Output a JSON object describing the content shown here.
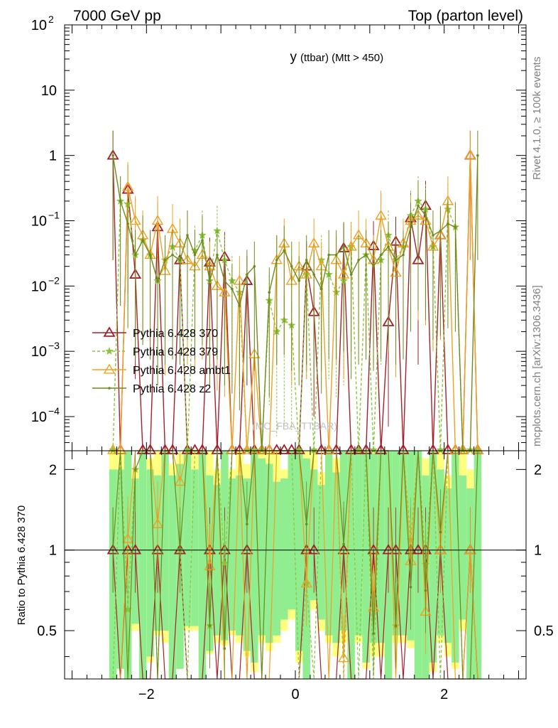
{
  "header": {
    "left": "7000 GeV pp",
    "right": "Top (parton level)"
  },
  "side": {
    "rivet": "Rivet 4.1.0, ≥ 100k events",
    "mcplots": "mcplots.cern.ch [arXiv:1306.3436]"
  },
  "chart_data": {
    "type": "line",
    "title_main": "y",
    "title_sub": "(ttbar) (Mtt > 450)",
    "watermark": "(MC_FBA_TTBAR)",
    "ylabel_ratio": "Ratio to Pythia 6.428 370",
    "xlim": [
      -3.1,
      3.1
    ],
    "ylim_main": [
      3e-05,
      100
    ],
    "ylim_ratio": [
      0.33,
      2.35
    ],
    "y_scale": "log",
    "x_ticks": [
      {
        "v": -2,
        "label": "−2"
      },
      {
        "v": 0,
        "label": "0"
      },
      {
        "v": 2,
        "label": "2"
      }
    ],
    "y_ticks_main": [
      {
        "v": 100,
        "base": "10",
        "exp": "2"
      },
      {
        "v": 10,
        "base": "10",
        "exp": ""
      },
      {
        "v": 1,
        "base": "1",
        "exp": ""
      },
      {
        "v": 0.1,
        "base": "10",
        "exp": "−1"
      },
      {
        "v": 0.01,
        "base": "10",
        "exp": "−2"
      },
      {
        "v": 0.001,
        "base": "10",
        "exp": "−3"
      },
      {
        "v": 0.0001,
        "base": "10",
        "exp": "−4"
      }
    ],
    "y_ticks_ratio": [
      {
        "v": 2,
        "label": "2"
      },
      {
        "v": 1,
        "label": "1"
      },
      {
        "v": 0.5,
        "label": "0.5"
      }
    ],
    "legend_placement": "middle-left",
    "x": [
      -2.45,
      -2.35,
      -2.25,
      -2.15,
      -2.05,
      -1.95,
      -1.85,
      -1.75,
      -1.65,
      -1.55,
      -1.45,
      -1.35,
      -1.25,
      -1.15,
      -1.05,
      -0.95,
      -0.85,
      -0.75,
      -0.65,
      -0.55,
      -0.45,
      -0.35,
      -0.25,
      -0.15,
      -0.05,
      0.05,
      0.15,
      0.25,
      0.35,
      0.45,
      0.55,
      0.65,
      0.75,
      0.85,
      0.95,
      1.05,
      1.15,
      1.25,
      1.35,
      1.45,
      1.55,
      1.65,
      1.75,
      1.85,
      1.95,
      2.05,
      2.15,
      2.25,
      2.35,
      2.45
    ],
    "series": [
      {
        "name": "Pythia 6.428 370",
        "color": "#a3202a",
        "marker": "triangle",
        "dashed": false,
        "values": [
          1.0,
          0,
          0.3,
          0.015,
          0,
          0,
          0.08,
          0,
          0,
          0.025,
          0,
          0,
          0,
          0.023,
          0,
          0.028,
          0,
          0,
          0.012,
          0,
          0,
          0,
          0,
          0,
          0,
          0,
          0.02,
          0.004,
          0,
          0,
          0,
          0.038,
          0,
          0,
          0,
          0.041,
          0,
          0.0028,
          0.048,
          0,
          0.11,
          0.025,
          0.17,
          0,
          0.06,
          0,
          0,
          0,
          1.0,
          0
        ]
      },
      {
        "name": "Pythia 6.428 379",
        "color": "#8ac43a",
        "marker": "star",
        "dashed": true,
        "values": [
          0,
          0.2,
          0.18,
          0.03,
          0.05,
          0.03,
          0.012,
          0.025,
          0.04,
          0.025,
          0,
          0.035,
          0.06,
          0.012,
          0.07,
          0.025,
          0.012,
          0.008,
          0,
          0,
          0,
          0.006,
          0.002,
          0.003,
          0.0025,
          0,
          0.015,
          0,
          0.025,
          0.015,
          0.008,
          0.012,
          0.04,
          0,
          0.03,
          0,
          0.025,
          0.06,
          0.025,
          0.04,
          0.12,
          0.2,
          0.15,
          0.04,
          0,
          0.15,
          0.08,
          0,
          0,
          0
        ]
      },
      {
        "name": "Pythia 6.428 ambt1",
        "color": "#f0a020",
        "marker": "triangle-open",
        "dashed": false,
        "values": [
          0,
          0,
          0.33,
          0.1,
          0.06,
          0.03,
          0.1,
          0.017,
          0.075,
          0.045,
          0.025,
          0.02,
          0.03,
          0.02,
          0.01,
          0.008,
          0,
          0.012,
          0,
          0.0009,
          0,
          0,
          0.025,
          0.045,
          0.012,
          0.02,
          0.015,
          0.045,
          0.02,
          0,
          0.025,
          0.015,
          0.04,
          0.06,
          0.045,
          0.025,
          0.12,
          0.04,
          0.016,
          0.045,
          0.1,
          0.12,
          0.1,
          0.04,
          0.06,
          0.2,
          0,
          0,
          1.0,
          0
        ]
      },
      {
        "name": "Pythia 6.428 z2",
        "color": "#6e8a1c",
        "marker": "dot",
        "dashed": false,
        "values": [
          1.0,
          0.2,
          0.09,
          0.03,
          0.05,
          0.03,
          0.012,
          0.025,
          0.03,
          0.025,
          0.06,
          0.03,
          0.05,
          0.012,
          0.03,
          0.012,
          0.009,
          0.005,
          0.015,
          0.02,
          0,
          0.008,
          0.025,
          0.035,
          0.02,
          0.012,
          0.025,
          0.015,
          0.009,
          0.03,
          0.03,
          0.04,
          0.015,
          0.025,
          0.03,
          0.02,
          0.03,
          0.04,
          0.025,
          0.03,
          0.08,
          0.17,
          0.12,
          0.06,
          0.07,
          0.09,
          0.08,
          0,
          0,
          1.0
        ]
      }
    ],
    "ratio_band": {
      "yellow_low": [
        0.33,
        0.36,
        0.33,
        0.5,
        0.33,
        0.38,
        0.48,
        0.45,
        0.33,
        0.36,
        0.5,
        0.5,
        0.33,
        0.41,
        0.45,
        0.44,
        0.48,
        0.45,
        0.4,
        0.35,
        0.45,
        0.42,
        0.45,
        0.5,
        0.55,
        0.38,
        0.33,
        0.6,
        0.5,
        0.45,
        0.4,
        0.45,
        0.33,
        0.45,
        0.36,
        0.4,
        0.4,
        0.33,
        0.45,
        0.45,
        0.43,
        0.33,
        0.33,
        0.35,
        0.45,
        0.4,
        0.36,
        0.5,
        0.33,
        0.33
      ],
      "yellow_high": [
        2.35,
        2.35,
        2.35,
        2.0,
        2.35,
        2.2,
        2.35,
        2.35,
        2.1,
        2.3,
        2.35,
        2.35,
        2.35,
        2.35,
        2.0,
        2.35,
        2.0,
        2.35,
        2.1,
        2.35,
        2.35,
        2.35,
        2.35,
        2.0,
        2.35,
        2.35,
        2.35,
        2.35,
        1.95,
        2.35,
        2.2,
        2.35,
        2.35,
        2.35,
        2.35,
        2.35,
        2.35,
        2.35,
        2.35,
        2.35,
        2.35,
        2.3,
        2.2,
        2.35,
        2.35,
        1.9,
        2.35,
        2.35,
        2.0,
        2.35
      ],
      "green_low": [
        0.33,
        0.36,
        0.33,
        0.53,
        0.33,
        0.4,
        0.5,
        0.5,
        0.33,
        0.36,
        0.52,
        0.52,
        0.33,
        0.42,
        0.48,
        0.46,
        0.5,
        0.48,
        0.42,
        0.38,
        0.48,
        0.45,
        0.48,
        0.55,
        0.6,
        0.42,
        0.33,
        0.65,
        0.55,
        0.48,
        0.45,
        0.5,
        0.33,
        0.48,
        0.38,
        0.45,
        0.45,
        0.33,
        0.48,
        0.48,
        0.46,
        0.33,
        0.33,
        0.38,
        0.48,
        0.45,
        0.38,
        0.55,
        0.33,
        0.33
      ],
      "green_high": [
        2.0,
        2.0,
        2.35,
        1.85,
        2.35,
        2.0,
        1.9,
        2.35,
        1.9,
        2.1,
        2.35,
        2.0,
        2.35,
        1.9,
        1.75,
        2.35,
        1.85,
        1.9,
        1.85,
        2.35,
        2.2,
        2.1,
        1.8,
        1.85,
        2.35,
        2.35,
        2.2,
        2.0,
        1.75,
        2.35,
        1.95,
        2.35,
        2.35,
        2.35,
        2.35,
        2.3,
        2.35,
        2.35,
        2.35,
        2.35,
        2.35,
        2.35,
        1.9,
        2.35,
        2.0,
        1.7,
        2.35,
        1.9,
        1.7,
        2.35
      ]
    }
  }
}
